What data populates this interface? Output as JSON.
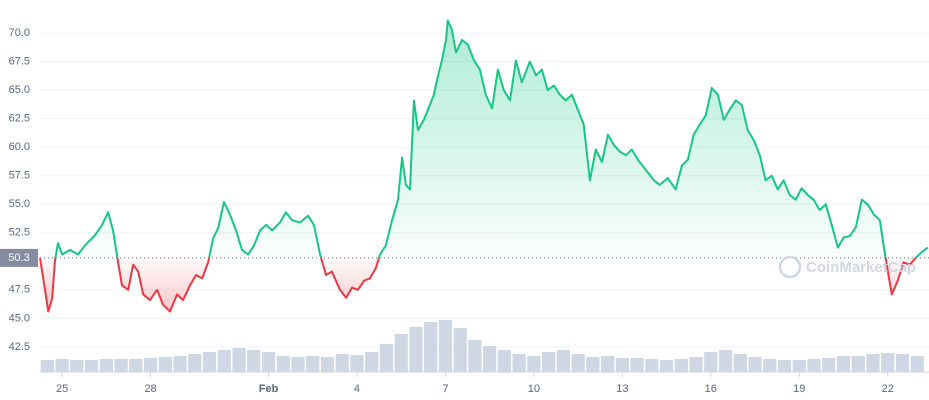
{
  "chart_data": {
    "type": "line",
    "x": [
      -0.75,
      -0.58,
      -0.47,
      -0.34,
      -0.24,
      -0.14,
      0,
      0.27,
      0.54,
      0.78,
      1.12,
      1.36,
      1.56,
      1.73,
      1.9,
      2.03,
      2.24,
      2.41,
      2.58,
      2.75,
      2.98,
      3.22,
      3.42,
      3.66,
      3.9,
      4.1,
      4.34,
      4.54,
      4.75,
      4.95,
      5.12,
      5.29,
      5.49,
      5.69,
      5.9,
      6.1,
      6.31,
      6.51,
      6.71,
      6.92,
      7.12,
      7.39,
      7.59,
      7.8,
      8.07,
      8.34,
      8.54,
      8.75,
      8.95,
      9.15,
      9.42,
      9.63,
      9.83,
      10.03,
      10.24,
      10.44,
      10.64,
      10.78,
      10.98,
      11.19,
      11.39,
      11.53,
      11.66,
      11.8,
      11.93,
      12.07,
      12.27,
      12.47,
      12.61,
      12.75,
      12.88,
      13.02,
      13.08,
      13.22,
      13.36,
      13.56,
      13.76,
      13.97,
      14.17,
      14.37,
      14.58,
      14.78,
      14.98,
      15.19,
      15.39,
      15.59,
      15.86,
      16.07,
      16.27,
      16.47,
      16.68,
      16.88,
      17.08,
      17.29,
      17.49,
      17.69,
      17.9,
      18.1,
      18.31,
      18.51,
      18.71,
      18.92,
      19.12,
      19.32,
      19.53,
      19.8,
      20.07,
      20.27,
      20.54,
      20.81,
      21.02,
      21.22,
      21.42,
      21.63,
      21.83,
      22.03,
      22.24,
      22.44,
      22.64,
      22.85,
      23.05,
      23.25,
      23.46,
      23.66,
      23.86,
      24.07,
      24.27,
      24.47,
      24.68,
      24.88,
      25.08,
      25.29,
      25.49,
      25.69,
      25.9,
      26.1,
      26.31,
      26.51,
      26.71,
      26.92,
      27.12,
      27.32,
      27.53,
      27.73,
      27.86,
      28,
      28.14,
      28.34,
      28.54,
      28.75,
      28.95,
      29.15,
      29.36
    ],
    "values": [
      50.3,
      47.5,
      45.6,
      46.7,
      50.1,
      51.6,
      50.6,
      51,
      50.6,
      51.4,
      52.3,
      53.2,
      54.3,
      52.7,
      49.9,
      47.9,
      47.5,
      49.7,
      49.1,
      47.1,
      46.6,
      47.5,
      46.2,
      45.6,
      47.1,
      46.6,
      47.9,
      48.8,
      48.5,
      49.9,
      52,
      52.9,
      55.2,
      54.1,
      52.7,
      51,
      50.6,
      51.4,
      52.7,
      53.2,
      52.7,
      53.4,
      54.3,
      53.6,
      53.4,
      54,
      53.2,
      50.6,
      48.8,
      49.1,
      47.5,
      46.8,
      47.7,
      47.5,
      48.3,
      48.5,
      49.4,
      50.6,
      51.4,
      53.6,
      55.4,
      59.1,
      56.7,
      56.3,
      64.1,
      61.5,
      62.4,
      63.7,
      64.6,
      66.3,
      67.6,
      69.4,
      71.1,
      70.3,
      68.3,
      69.4,
      69,
      67.6,
      66.8,
      64.6,
      63.4,
      66.8,
      65,
      64.1,
      67.6,
      65.7,
      67.5,
      66.3,
      66.8,
      65,
      65.4,
      64.6,
      64.1,
      64.6,
      63.3,
      62,
      57.1,
      59.8,
      58.7,
      61.1,
      60.2,
      59.6,
      59.3,
      59.8,
      58.9,
      58,
      57.1,
      56.7,
      57.3,
      56.3,
      58.4,
      58.9,
      61.1,
      62,
      62.8,
      65.2,
      64.6,
      62.4,
      63.3,
      64.1,
      63.7,
      61.5,
      60.6,
      59.3,
      57.1,
      57.5,
      56.3,
      57.1,
      55.8,
      55.4,
      56.4,
      55.8,
      55.4,
      54.5,
      55,
      53.2,
      51.2,
      52.1,
      52.2,
      53,
      55.4,
      55,
      54.1,
      53.6,
      51.4,
      49.2,
      47.1,
      48.3,
      49.9,
      49.7,
      50.3,
      50.8,
      51.2
    ],
    "baseline": 50.3,
    "up_color": "#16c784",
    "down_color": "#ea3943",
    "volume_color": "#cfd6e4",
    "volume_x": [
      -0.5,
      0,
      0.5,
      1,
      1.5,
      2,
      2.5,
      3,
      3.5,
      4,
      4.5,
      5,
      5.5,
      6,
      6.5,
      7,
      7.5,
      8,
      8.5,
      9,
      9.5,
      10,
      10.5,
      11,
      11.5,
      12,
      12.5,
      13,
      13.5,
      14,
      14.5,
      15,
      15.5,
      16,
      16.5,
      17,
      17.5,
      18,
      18.5,
      19,
      19.5,
      20,
      20.5,
      21,
      21.5,
      22,
      22.5,
      23,
      23.5,
      24,
      24.5,
      25,
      25.5,
      26,
      26.5,
      27,
      27.5,
      28,
      28.5,
      29
    ],
    "volume_values": [
      12,
      13,
      12,
      12,
      13,
      13,
      13,
      14,
      15,
      16,
      18,
      20,
      22,
      24,
      22,
      20,
      16,
      15,
      16,
      15,
      18,
      17,
      20,
      28,
      38,
      45,
      50,
      52,
      44,
      32,
      26,
      22,
      18,
      16,
      20,
      22,
      18,
      15,
      16,
      14,
      14,
      13,
      12,
      13,
      15,
      20,
      22,
      18,
      15,
      13,
      12,
      12,
      13,
      14,
      16,
      16,
      18,
      19,
      18,
      16
    ],
    "xlim": [
      -0.75,
      29.4
    ],
    "xticks": [
      {
        "value": 0,
        "label": "25"
      },
      {
        "value": 3,
        "label": "28"
      },
      {
        "value": 7,
        "label": "Feb"
      },
      {
        "value": 10,
        "label": "4"
      },
      {
        "value": 13,
        "label": "7"
      },
      {
        "value": 16,
        "label": "10"
      },
      {
        "value": 19,
        "label": "13"
      },
      {
        "value": 22,
        "label": "16"
      },
      {
        "value": 25,
        "label": "19"
      },
      {
        "value": 28,
        "label": "22"
      }
    ],
    "ylim": [
      40.3,
      72.9
    ],
    "yticks": [
      42.5,
      {
        "value": 45,
        "label": "45.0"
      },
      47.5,
      52.5,
      {
        "value": 55,
        "label": "55.0"
      },
      57.5,
      {
        "value": 60,
        "label": "60.0"
      },
      62.5,
      {
        "value": 65,
        "label": "65.0"
      },
      67.5,
      {
        "value": 70,
        "label": "70.0"
      }
    ],
    "grid": true,
    "watermark": "CoinMarketCap"
  }
}
